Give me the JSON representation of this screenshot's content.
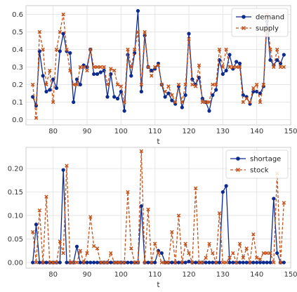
{
  "colors": {
    "demand": "#0d2b8e",
    "supply": "#c4521a",
    "shortage": "#0d2b8e",
    "stock": "#c4521a",
    "panel_bg": "#ffffff",
    "grid": "#e6e6e6",
    "frame": "#cccccc",
    "tick_text": "#333333"
  },
  "chart_data": [
    {
      "type": "line",
      "xlabel": "t",
      "ylabel": "",
      "title": "",
      "xlim": [
        72,
        150
      ],
      "ylim": [
        -0.03,
        0.65
      ],
      "xticks": [
        80,
        90,
        100,
        110,
        120,
        130,
        140,
        150
      ],
      "yticks": [
        0.0,
        0.1,
        0.2,
        0.3,
        0.4,
        0.5,
        0.6
      ],
      "ytick_labels": [
        "0.0",
        "0.1",
        "0.2",
        "0.3",
        "0.4",
        "0.5",
        "0.6"
      ],
      "grid": true,
      "legend_position": "top-right",
      "x": [
        74,
        75,
        76,
        77,
        78,
        79,
        80,
        81,
        82,
        83,
        84,
        85,
        86,
        87,
        88,
        89,
        90,
        91,
        92,
        93,
        94,
        95,
        96,
        97,
        98,
        99,
        100,
        101,
        102,
        103,
        104,
        105,
        106,
        107,
        108,
        109,
        110,
        111,
        112,
        113,
        114,
        115,
        116,
        117,
        118,
        119,
        120,
        121,
        122,
        123,
        124,
        125,
        126,
        127,
        128,
        129,
        130,
        131,
        132,
        133,
        134,
        135,
        136,
        137,
        138,
        139,
        140,
        141,
        142,
        143,
        144,
        145,
        146,
        147,
        148
      ],
      "series": [
        {
          "name": "demand",
          "marker": "circle",
          "linestyle": "solid",
          "values": [
            0.13,
            0.08,
            0.39,
            0.25,
            0.16,
            0.17,
            0.23,
            0.18,
            0.39,
            0.49,
            0.39,
            0.38,
            0.1,
            0.23,
            0.2,
            0.31,
            0.3,
            0.4,
            0.26,
            0.26,
            0.27,
            0.28,
            0.13,
            0.26,
            0.13,
            0.12,
            0.16,
            0.05,
            0.37,
            0.25,
            0.38,
            0.62,
            0.16,
            0.48,
            0.3,
            0.28,
            0.29,
            0.32,
            0.2,
            0.13,
            0.15,
            0.11,
            0.09,
            0.19,
            0.07,
            0.14,
            0.49,
            0.23,
            0.2,
            0.24,
            0.12,
            0.1,
            0.05,
            0.14,
            0.17,
            0.34,
            0.26,
            0.28,
            0.37,
            0.29,
            0.33,
            0.32,
            0.14,
            0.13,
            0.09,
            0.16,
            0.16,
            0.15,
            0.19,
            0.56,
            0.34,
            0.31,
            0.34,
            0.32,
            0.37
          ]
        },
        {
          "name": "supply",
          "marker": "x",
          "linestyle": "dashed",
          "values": [
            0.2,
            0.01,
            0.5,
            0.4,
            0.2,
            0.28,
            0.1,
            0.4,
            0.5,
            0.6,
            0.4,
            0.28,
            0.2,
            0.2,
            0.3,
            0.3,
            0.28,
            0.4,
            0.3,
            0.3,
            0.3,
            0.3,
            0.2,
            0.29,
            0.28,
            0.2,
            0.19,
            0.1,
            0.4,
            0.3,
            0.4,
            0.5,
            0.2,
            0.5,
            0.3,
            0.25,
            0.3,
            0.31,
            0.2,
            0.16,
            0.19,
            0.14,
            0.1,
            0.2,
            0.1,
            0.2,
            0.46,
            0.2,
            0.19,
            0.31,
            0.1,
            0.1,
            0.1,
            0.2,
            0.2,
            0.4,
            0.3,
            0.4,
            0.3,
            0.3,
            0.3,
            0.3,
            0.1,
            0.12,
            0.1,
            0.18,
            0.2,
            0.1,
            0.2,
            0.6,
            0.4,
            0.3,
            0.4,
            0.3,
            0.3
          ]
        }
      ]
    },
    {
      "type": "line",
      "xlabel": "t",
      "ylabel": "",
      "title": "",
      "xlim": [
        72,
        150
      ],
      "ylim": [
        -0.012,
        0.245
      ],
      "xticks": [
        80,
        90,
        100,
        110,
        120,
        130,
        140,
        150
      ],
      "yticks": [
        0.0,
        0.05,
        0.1,
        0.15,
        0.2
      ],
      "ytick_labels": [
        "0.00",
        "0.05",
        "0.10",
        "0.15",
        "0.20"
      ],
      "grid": true,
      "legend_position": "top-right",
      "x": [
        74,
        75,
        76,
        77,
        78,
        79,
        80,
        81,
        82,
        83,
        84,
        85,
        86,
        87,
        88,
        89,
        90,
        91,
        92,
        93,
        94,
        95,
        96,
        97,
        98,
        99,
        100,
        101,
        102,
        103,
        104,
        105,
        106,
        107,
        108,
        109,
        110,
        111,
        112,
        113,
        114,
        115,
        116,
        117,
        118,
        119,
        120,
        121,
        122,
        123,
        124,
        125,
        126,
        127,
        128,
        129,
        130,
        131,
        132,
        133,
        134,
        135,
        136,
        137,
        138,
        139,
        140,
        141,
        142,
        143,
        144,
        145,
        146,
        147,
        148
      ],
      "series": [
        {
          "name": "shortage",
          "marker": "circle",
          "linestyle": "solid",
          "values": [
            0,
            0.081,
            0,
            0,
            0,
            0,
            0,
            0,
            0,
            0.197,
            0,
            0,
            0,
            0.034,
            0,
            0,
            0,
            0,
            0,
            0,
            0,
            0,
            0,
            0,
            0,
            0,
            0,
            0,
            0,
            0,
            0,
            0,
            0.12,
            0,
            0,
            0,
            0,
            0.025,
            0.02,
            0,
            0,
            0,
            0,
            0,
            0,
            0,
            0.002,
            0,
            0,
            0,
            0,
            0,
            0,
            0,
            0,
            0,
            0.15,
            0.163,
            0,
            0,
            0,
            0,
            0,
            0,
            0,
            0,
            0,
            0,
            0,
            0,
            0,
            0.136,
            0.02,
            0,
            0
          ]
        },
        {
          "name": "stock",
          "marker": "x",
          "linestyle": "dashed",
          "values": [
            0.065,
            0,
            0.111,
            0,
            0.14,
            0,
            0,
            0,
            0.045,
            0.02,
            0.206,
            0,
            0,
            0,
            0.025,
            0,
            0.02,
            0.097,
            0.035,
            0.03,
            0,
            0,
            0,
            0.02,
            0,
            0,
            0,
            0,
            0.15,
            0.03,
            0,
            0,
            0.237,
            0,
            0.113,
            0,
            0.04,
            0.02,
            0,
            0,
            0,
            0.065,
            0,
            0.1,
            0,
            0.04,
            0.02,
            0,
            0.158,
            0,
            0,
            0.01,
            0.04,
            0.02,
            0,
            0.105,
            0,
            0,
            0.01,
            0.02,
            0,
            0.04,
            0.01,
            0.03,
            0,
            0.06,
            0.01,
            0.007,
            0.02,
            0.02,
            0.02,
            0,
            0.19,
            0,
            0.127
          ]
        }
      ]
    }
  ]
}
